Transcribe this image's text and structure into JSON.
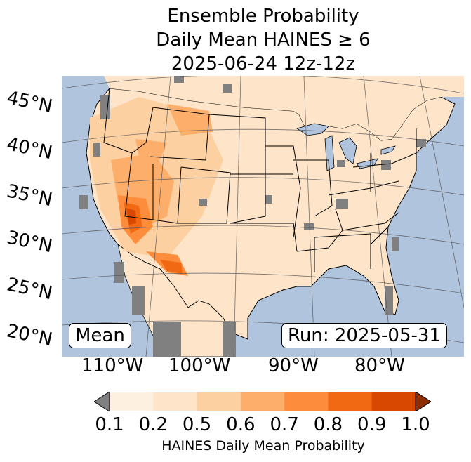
{
  "title": {
    "line1": "Ensemble Probability",
    "line2": "Daily Mean HAINES ≥ 6",
    "line3": "2025-06-24 12z-12z"
  },
  "map": {
    "region": "Contiguous United States",
    "latitude_labels": [
      "45°N",
      "40°N",
      "35°N",
      "30°N",
      "25°N",
      "20°N"
    ],
    "longitude_labels": [
      "110°W",
      "100°W",
      "90°W",
      "80°W"
    ],
    "mean_label": "Mean",
    "run_label": "Run: 2025-05-31",
    "colors": {
      "ocean": "#b0c4de",
      "missing": "#808080",
      "bin_0": "#fef0e1",
      "bin_1": "#fee4c9",
      "bin_2": "#fdd0a2",
      "bin_3": "#fdae6b",
      "bin_4": "#fd8d3c",
      "bin_5": "#f16913",
      "bin_6": "#d94801",
      "bin_7": "#8c2d04"
    }
  },
  "colorbar": {
    "ticks": [
      "0.1",
      "0.2",
      "0.5",
      "0.6",
      "0.7",
      "0.8",
      "0.9",
      "1.0"
    ],
    "label": "HAINES Daily Mean Probability",
    "colors": [
      "#fef0e1",
      "#fee4c9",
      "#fdd0a2",
      "#fdae6b",
      "#fd8d3c",
      "#f16913",
      "#d94801"
    ],
    "under_color": "#808080",
    "over_color": "#8c2d04"
  }
}
